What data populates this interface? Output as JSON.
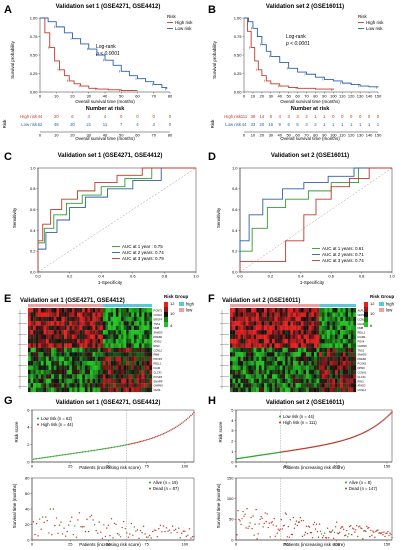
{
  "panels": {
    "A": {
      "letter": "A",
      "title": "Validation set 1 (GSE4271, GSE4412)",
      "legend_title": "Risk",
      "logrank": "Log-rank",
      "pval": "p < 0.0001",
      "risk_table_title": "Number at risk",
      "risk_label": "Risk"
    },
    "B": {
      "letter": "B",
      "title": "Validation set 2 (GSE16011)",
      "legend_title": "Risk",
      "logrank": "Log-rank",
      "pval": "p < 0.0001",
      "risk_table_title": "Number at risk",
      "risk_label": "Risk"
    },
    "C": {
      "letter": "C",
      "title": "Validation set 1 (GSE4271, GSE4412)"
    },
    "D": {
      "letter": "D",
      "title": "Validation set 2 (GSE16011)"
    },
    "E": {
      "letter": "E",
      "title": "Validation set 1 (GSE4271, GSE4412)",
      "legend_title": "Risk Group"
    },
    "F": {
      "letter": "F",
      "title": "Validation set 2 (GSE16011)",
      "legend_title": "Risk Group"
    },
    "G": {
      "letter": "G",
      "title": "Validation set 1 (GSE4271, GSE4412)"
    },
    "H": {
      "letter": "H",
      "title": "Validation set 2 (GSE16011)"
    }
  },
  "colors": {
    "high": "#c0392b",
    "low": "#2e5fa8",
    "auc1": "#2e9e2e",
    "auc2": "#2e5fa8",
    "auc3": "#c0392b",
    "heat_high": "#e82020",
    "heat_mid": "#111111",
    "heat_low": "#22c422",
    "group_high": "#5bc8d8",
    "group_low": "#f0a0a0",
    "alive": "#2e9e2e",
    "dead": "#c0392b"
  },
  "chart_data": [
    {
      "panel": "A",
      "type": "line",
      "xlabel": "Overall survival time (months)",
      "ylabel": "Survival probability",
      "xlim": [
        0,
        80
      ],
      "ylim": [
        0,
        1
      ],
      "xticks": [
        0,
        10,
        20,
        30,
        40,
        50,
        60,
        70,
        80
      ],
      "yticks": [
        "0.00",
        "0.25",
        "0.50",
        "0.75",
        "1.00"
      ],
      "series": [
        {
          "name": "High risk",
          "color_key": "high",
          "x": [
            0,
            3,
            6,
            9,
            12,
            15,
            18,
            21,
            25,
            30,
            35,
            42,
            50,
            60
          ],
          "y": [
            1.0,
            0.8,
            0.6,
            0.42,
            0.3,
            0.22,
            0.15,
            0.11,
            0.08,
            0.05,
            0.04,
            0.03,
            0.02,
            0.02
          ]
        },
        {
          "name": "Low risk",
          "color_key": "low",
          "x": [
            0,
            5,
            10,
            15,
            20,
            25,
            30,
            35,
            40,
            45,
            50,
            55,
            60,
            65,
            70,
            75,
            78
          ],
          "y": [
            1.0,
            0.95,
            0.88,
            0.8,
            0.72,
            0.65,
            0.58,
            0.5,
            0.43,
            0.36,
            0.28,
            0.22,
            0.18,
            0.14,
            0.1,
            0.06,
            0.04
          ]
        }
      ],
      "risk_table": {
        "times": [
          0,
          10,
          20,
          30,
          40,
          50,
          60,
          70,
          80
        ],
        "rows": [
          {
            "name": "High risk",
            "values": [
              "44",
              "20",
              "6",
              "4",
              "4",
              "0",
              "0",
              "0",
              "0"
            ]
          },
          {
            "name": "Low risk",
            "values": [
              "62",
              "48",
              "30",
              "21",
              "11",
              "7",
              "4",
              "3",
              "0"
            ]
          }
        ]
      }
    },
    {
      "panel": "B",
      "type": "line",
      "xlabel": "Overall survival time (months)",
      "ylabel": "Survival probability",
      "xlim": [
        0,
        150
      ],
      "ylim": [
        0,
        1
      ],
      "xticks": [
        0,
        10,
        20,
        30,
        40,
        50,
        60,
        70,
        80,
        90,
        100,
        110,
        120,
        130,
        140,
        150
      ],
      "yticks": [
        "0.00",
        "0.25",
        "0.50",
        "0.75",
        "1.00"
      ],
      "series": [
        {
          "name": "High risk",
          "color_key": "high",
          "x": [
            0,
            4,
            8,
            12,
            16,
            20,
            25,
            30,
            40,
            50,
            60,
            80,
            100
          ],
          "y": [
            1.0,
            0.82,
            0.6,
            0.42,
            0.3,
            0.22,
            0.15,
            0.11,
            0.08,
            0.06,
            0.05,
            0.04,
            0.03
          ]
        },
        {
          "name": "Low risk",
          "color_key": "low",
          "x": [
            0,
            5,
            10,
            15,
            20,
            25,
            30,
            40,
            50,
            60,
            70,
            80,
            90,
            100,
            110,
            120,
            130,
            140,
            150
          ],
          "y": [
            1.0,
            0.95,
            0.86,
            0.75,
            0.64,
            0.55,
            0.48,
            0.4,
            0.32,
            0.27,
            0.24,
            0.2,
            0.17,
            0.15,
            0.12,
            0.1,
            0.08,
            0.07,
            0.06
          ]
        }
      ],
      "risk_table": {
        "times": [
          0,
          10,
          20,
          30,
          40,
          50,
          60,
          70,
          80,
          90,
          100,
          110,
          120,
          130,
          140,
          150
        ],
        "rows": [
          {
            "name": "High risk",
            "values": [
              "111",
              "39",
              "14",
              "6",
              "4",
              "3",
              "3",
              "2",
              "1",
              "1",
              "0",
              "0",
              "0",
              "0",
              "0",
              "0"
            ]
          },
          {
            "name": "Low risk",
            "values": [
              "44",
              "33",
              "20",
              "15",
              "9",
              "6",
              "5",
              "3",
              "2",
              "1",
              "1",
              "1",
              "1",
              "1",
              "1",
              "1"
            ]
          }
        ]
      }
    },
    {
      "panel": "C",
      "type": "line",
      "xlabel": "1-Specificity",
      "ylabel": "Sensitivity",
      "xlim": [
        0,
        1
      ],
      "ylim": [
        0,
        1
      ],
      "xticks": [
        "0.0",
        "0.2",
        "0.4",
        "0.6",
        "0.8",
        "1.0"
      ],
      "yticks": [
        "0.0",
        "0.2",
        "0.4",
        "0.6",
        "0.8",
        "1.0"
      ],
      "series": [
        {
          "name": "AUC at 1 year : 0.75",
          "color_key": "auc1",
          "x": [
            0,
            0,
            0.04,
            0.04,
            0.1,
            0.1,
            0.18,
            0.18,
            0.28,
            0.28,
            0.4,
            0.4,
            0.55,
            0.55,
            0.72,
            0.72,
            1.0
          ],
          "y": [
            0,
            0.28,
            0.28,
            0.42,
            0.42,
            0.55,
            0.55,
            0.66,
            0.66,
            0.74,
            0.74,
            0.82,
            0.82,
            0.9,
            0.9,
            1.0,
            1.0
          ]
        },
        {
          "name": "AUC at 2 years: 0.74",
          "color_key": "auc2",
          "x": [
            0,
            0,
            0.05,
            0.05,
            0.12,
            0.12,
            0.2,
            0.2,
            0.3,
            0.3,
            0.44,
            0.44,
            0.6,
            0.6,
            0.78,
            0.78,
            1.0
          ],
          "y": [
            0,
            0.22,
            0.22,
            0.38,
            0.38,
            0.5,
            0.5,
            0.62,
            0.62,
            0.72,
            0.72,
            0.8,
            0.8,
            0.88,
            0.88,
            1.0,
            1.0
          ]
        },
        {
          "name": "AUC at 3 years: 0.79",
          "color_key": "auc3",
          "x": [
            0,
            0,
            0.03,
            0.03,
            0.08,
            0.08,
            0.15,
            0.15,
            0.25,
            0.25,
            0.36,
            0.36,
            0.5,
            0.5,
            0.66,
            0.66,
            1.0
          ],
          "y": [
            0,
            0.3,
            0.3,
            0.46,
            0.46,
            0.6,
            0.6,
            0.7,
            0.7,
            0.78,
            0.78,
            0.86,
            0.86,
            0.93,
            0.93,
            1.0,
            1.0
          ]
        }
      ]
    },
    {
      "panel": "D",
      "type": "line",
      "xlabel": "1-Specificity",
      "ylabel": "Sensitivity",
      "xlim": [
        0,
        1
      ],
      "ylim": [
        0,
        1
      ],
      "xticks": [
        "0.0",
        "0.2",
        "0.4",
        "0.6",
        "0.8",
        "1.0"
      ],
      "yticks": [
        "0.0",
        "0.2",
        "0.4",
        "0.6",
        "0.8",
        "1.0"
      ],
      "series": [
        {
          "name": "AUC at 1 years: 0.61",
          "color_key": "auc1",
          "x": [
            0,
            0,
            0.08,
            0.08,
            0.18,
            0.18,
            0.3,
            0.3,
            0.45,
            0.45,
            0.6,
            0.6,
            0.78,
            0.78,
            1.0
          ],
          "y": [
            0,
            0.2,
            0.2,
            0.42,
            0.42,
            0.62,
            0.62,
            0.7,
            0.7,
            0.78,
            0.78,
            0.86,
            0.86,
            1.0,
            1.0
          ]
        },
        {
          "name": "AUC at 2 years: 0.71",
          "color_key": "auc2",
          "x": [
            0,
            0,
            0.06,
            0.06,
            0.15,
            0.15,
            0.28,
            0.28,
            0.42,
            0.42,
            0.58,
            0.58,
            0.75,
            0.75,
            1.0
          ],
          "y": [
            0,
            0.3,
            0.3,
            0.55,
            0.55,
            0.7,
            0.7,
            0.8,
            0.8,
            0.86,
            0.86,
            0.92,
            0.92,
            1.0,
            1.0
          ]
        },
        {
          "name": "AUC at 3 years: 0.74",
          "color_key": "auc3",
          "x": [
            0,
            0,
            0.3,
            0.3,
            0.42,
            0.42,
            0.5,
            0.5,
            0.6,
            0.6,
            0.72,
            0.72,
            0.85,
            0.85,
            1.0
          ],
          "y": [
            0,
            0.1,
            0.1,
            0.3,
            0.3,
            0.55,
            0.55,
            0.7,
            0.7,
            0.82,
            0.82,
            0.9,
            0.9,
            1.0,
            1.0
          ]
        }
      ]
    },
    {
      "panel": "E",
      "type": "heatmap",
      "genes": [
        "PCMT1",
        "CCNL2",
        "ERGFF",
        "TNS1",
        "NMB",
        "SMAD5",
        "PDE6D",
        "ATAD2",
        "RIN3",
        "CCNL2",
        "RBM",
        "PDXP2",
        "RELL1",
        "ICAM",
        "CLCF1",
        "PCSK5",
        "SNAPIF",
        "CHRM3",
        "CHI3L"
      ],
      "group_split": 0.6,
      "legend": {
        "scale_max": 12,
        "scale_mid": 10,
        "scale_min": 4,
        "groups": [
          "high",
          "low"
        ]
      }
    },
    {
      "panel": "F",
      "type": "heatmap",
      "genes": [
        "ALPL",
        "GKP3C",
        "CCNL2",
        "CHI3L1",
        "NMB",
        "RELL1",
        "ICAM1",
        "PDX4",
        "CHRM3",
        "TNS1",
        "SMAD5",
        "PDE6D",
        "PCSK5",
        "DPM3",
        "CCNA1",
        "CLCF1",
        "RIN3",
        "ATAD2",
        "CCNL2"
      ],
      "group_split": 0.7,
      "legend": {
        "scale_max": 12,
        "scale_mid": 10,
        "scale_min": 6,
        "groups": [
          "high",
          "low"
        ]
      }
    },
    {
      "panel": "G",
      "type": "scatter",
      "xlabel": "Patients (increasing risk score)",
      "ylabel": "Risk score",
      "xlim": [
        0,
        106
      ],
      "ylim": [
        0,
        6
      ],
      "xticks": [
        0,
        25,
        50,
        75,
        100
      ],
      "yticks": [
        0,
        2,
        4,
        6
      ],
      "cutoff": 62,
      "legend": [
        {
          "name": "Low risk (n = 62)",
          "color_key": "low_risk"
        },
        {
          "name": "High risk (n = 44)",
          "color_key": "high_risk"
        }
      ],
      "survival": {
        "xlabel": "Patients (increasing risk score)",
        "ylabel": "Survival time (months)",
        "ylim": [
          0,
          80
        ],
        "yticks": [
          0,
          20,
          40,
          60,
          80
        ],
        "legend": [
          "Alive (n = 19)",
          "Dead (n = 87)"
        ]
      }
    },
    {
      "panel": "H",
      "type": "scatter",
      "xlabel": "Patients (increasing risk score)",
      "ylabel": "Risk score",
      "xlim": [
        0,
        155
      ],
      "ylim": [
        0,
        5
      ],
      "xticks": [
        0,
        50,
        100,
        150
      ],
      "yticks": [
        0,
        1,
        2,
        3,
        4,
        5
      ],
      "cutoff": 44,
      "legend": [
        {
          "name": "Low risk (n = 44)",
          "color_key": "low_risk"
        },
        {
          "name": "High risk (n = 111)",
          "color_key": "high_risk"
        }
      ],
      "survival": {
        "xlabel": "Patients (increasing risk score)",
        "ylabel": "Survival time (months)",
        "ylim": [
          0,
          150
        ],
        "yticks": [
          0,
          50,
          100,
          150
        ],
        "legend": [
          "Alive (n = 8)",
          "Dead (n = 147)"
        ]
      }
    }
  ]
}
